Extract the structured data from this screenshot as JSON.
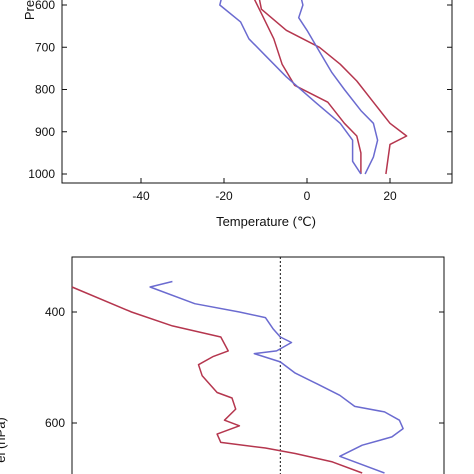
{
  "colors": {
    "red": "#b5364e",
    "blue": "#6b6bd0",
    "frame": "#111111"
  },
  "chart_data": [
    {
      "type": "line",
      "xlabel": "Temperature (℃)",
      "ylabel": "Pre",
      "xlim": [
        -55,
        35
      ],
      "ylim": [
        1000,
        560
      ],
      "y_inverted": true,
      "grid": false,
      "xticks": [
        -40,
        -20,
        0,
        20
      ],
      "xtick_labels": [
        "-40",
        "-20",
        "0",
        "20"
      ],
      "yticks": [
        600,
        700,
        800,
        900,
        1000
      ],
      "ytick_labels": [
        "600",
        "700",
        "800",
        "900",
        "1000"
      ],
      "series": [
        {
          "color": "red",
          "points": [
            [
              -12,
              560
            ],
            [
              -11,
              610
            ],
            [
              -5,
              660
            ],
            [
              3,
              700
            ],
            [
              8,
              740
            ],
            [
              12,
              780
            ],
            [
              16,
              830
            ],
            [
              20,
              880
            ],
            [
              24,
              910
            ],
            [
              20,
              930
            ],
            [
              19,
              1000
            ]
          ]
        },
        {
          "color": "blue",
          "points": [
            [
              -2,
              560
            ],
            [
              -1,
              600
            ],
            [
              -2,
              630
            ],
            [
              0,
              660
            ],
            [
              3,
              710
            ],
            [
              6,
              760
            ],
            [
              9,
              800
            ],
            [
              13,
              850
            ],
            [
              16,
              880
            ],
            [
              17,
              920
            ],
            [
              16,
              960
            ],
            [
              14,
              1000
            ]
          ]
        },
        {
          "color": "red",
          "points": [
            [
              -14,
              560
            ],
            [
              -11,
              620
            ],
            [
              -8,
              680
            ],
            [
              -6,
              740
            ],
            [
              -3,
              790
            ],
            [
              5,
              830
            ],
            [
              9,
              880
            ],
            [
              12,
              910
            ],
            [
              13,
              950
            ],
            [
              13,
              1000
            ]
          ]
        },
        {
          "color": "blue",
          "points": [
            [
              -20,
              560
            ],
            [
              -21,
              600
            ],
            [
              -16,
              640
            ],
            [
              -14,
              680
            ],
            [
              -10,
              720
            ],
            [
              -5,
              770
            ],
            [
              2,
              830
            ],
            [
              8,
              880
            ],
            [
              11,
              920
            ],
            [
              11,
              970
            ],
            [
              13,
              1000
            ]
          ]
        }
      ]
    },
    {
      "type": "line",
      "xlabel": "",
      "ylabel": "el (hPa)",
      "xlim": [
        0,
        100
      ],
      "ylim": [
        300,
        690
      ],
      "y_inverted": true,
      "grid": false,
      "yticks": [
        400,
        600
      ],
      "ytick_labels": [
        "400",
        "600"
      ],
      "reference_line": {
        "x": 56,
        "style": "dotted"
      },
      "series": [
        {
          "color": "red",
          "points": [
            [
              0,
              355
            ],
            [
              16,
              400
            ],
            [
              27,
              425
            ],
            [
              40,
              445
            ],
            [
              42,
              470
            ],
            [
              38,
              480
            ],
            [
              34,
              495
            ],
            [
              35,
              515
            ],
            [
              39,
              545
            ],
            [
              43,
              555
            ],
            [
              44,
              575
            ],
            [
              41,
              595
            ],
            [
              45,
              605
            ],
            [
              39,
              620
            ],
            [
              40,
              635
            ],
            [
              52,
              645
            ],
            [
              60,
              655
            ],
            [
              70,
              670
            ],
            [
              78,
              690
            ]
          ]
        },
        {
          "color": "blue",
          "points": [
            [
              27,
              345
            ],
            [
              21,
              355
            ],
            [
              33,
              385
            ],
            [
              45,
              400
            ],
            [
              52,
              410
            ],
            [
              54,
              430
            ],
            [
              56,
              445
            ],
            [
              59,
              455
            ],
            [
              55,
              470
            ],
            [
              49,
              475
            ],
            [
              56,
              490
            ],
            [
              60,
              510
            ],
            [
              66,
              530
            ],
            [
              72,
              550
            ],
            [
              76,
              570
            ],
            [
              84,
              580
            ],
            [
              88,
              595
            ],
            [
              89,
              610
            ],
            [
              86,
              625
            ],
            [
              78,
              640
            ],
            [
              72,
              660
            ],
            [
              84,
              690
            ]
          ]
        }
      ]
    }
  ],
  "text": {
    "top_xlabel": "Temperature (℃)",
    "top_ylabel": "Pre",
    "bottom_ylabel": "el (hPa)"
  }
}
